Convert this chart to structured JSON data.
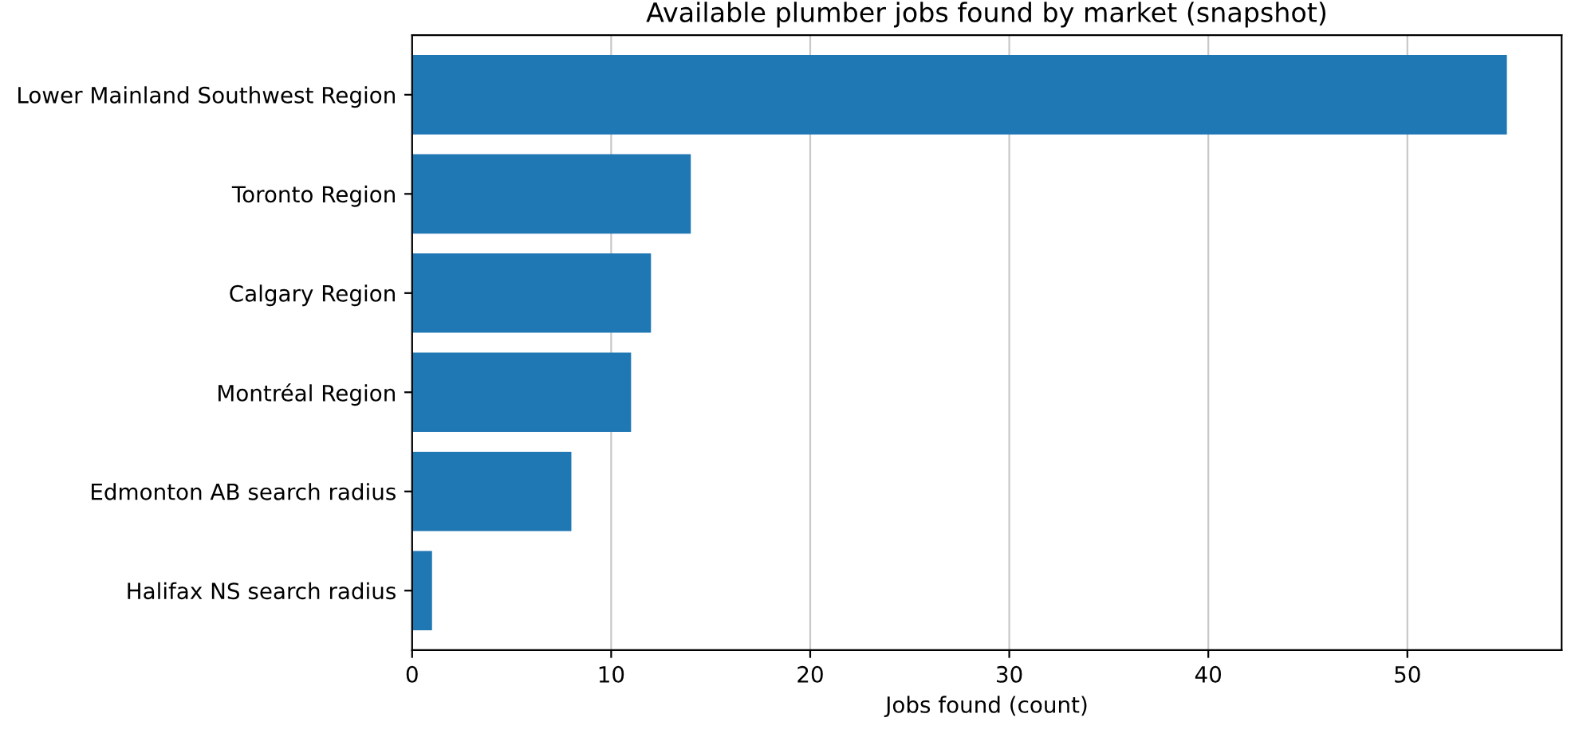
{
  "chart_data": {
    "type": "bar",
    "orientation": "horizontal",
    "title": "Available plumber jobs found by market (snapshot)",
    "xlabel": "Jobs found (count)",
    "categories": [
      "Lower Mainland Southwest Region",
      "Toronto Region",
      "Calgary Region",
      "Montréal Region",
      "Edmonton AB search radius",
      "Halifax NS search radius"
    ],
    "values": [
      55,
      14,
      12,
      11,
      8,
      1
    ],
    "color": "#1f77b4",
    "xlim": [
      0,
      57.75
    ],
    "xticks": [
      0,
      10,
      20,
      30,
      40,
      50
    ],
    "grid": "x"
  }
}
